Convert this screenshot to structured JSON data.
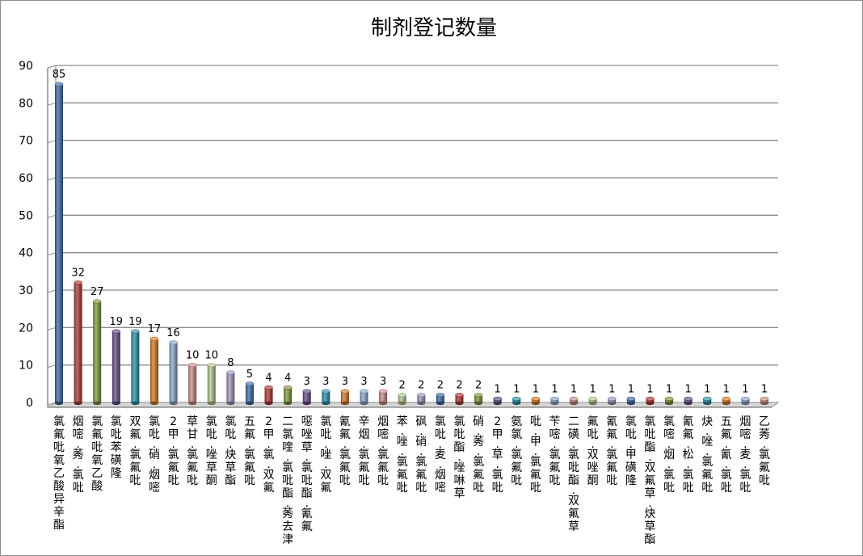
{
  "chart_data": {
    "type": "bar",
    "title": "制剂登记数量",
    "xlabel": "",
    "ylabel": "",
    "ylim": [
      0,
      90
    ],
    "yticks": [
      0,
      10,
      20,
      30,
      40,
      50,
      60,
      70,
      80,
      90
    ],
    "grid": true,
    "legend": "none",
    "style": "3d-cylinder",
    "categories": [
      "氯氟吡氧乙酸异辛酯",
      "烟嘧·莠·氯吡",
      "氯氟吡氧乙酸",
      "氯吡苯磺隆",
      "双氟·氯氟吡",
      "氯吡·硝·烟嘧",
      "2甲·氯氟吡",
      "草甘·氯氟吡",
      "氯吡·唑草酮",
      "氯吡·炔草酯",
      "五氟·氯氟吡",
      "2甲·氯·双氟",
      "二氯喹·氯吡酯·莠去津",
      "噁唑草·氯吡酯·氰氟",
      "氯吡·唑·双氟",
      "氰氟·氯氟吡",
      "辛烟·氯氟吡",
      "烟嘧·氯氟吡",
      "苯·唑·氯氟吡",
      "砜·硝·氯氟吡",
      "氯吡·麦·烟嘧",
      "氯吡酯·唑啉草",
      "硝·莠·氯氟吡",
      "2甲·草·氯吡",
      "氨氯·氯氟吡",
      "吡·甲·氯氟吡",
      "苄嘧·氯氟吡",
      "二磺·氯吡酯·双氟草",
      "氟吡·双唑酮",
      "氰氟·氯氟吡",
      "氯吡·甲磺隆",
      "氯吡酯·双氟草·炔草酯",
      "氯嘧·烟·氯吡",
      "氰氟·松·氯吡",
      "炔·唑·氯氟吡",
      "五氟·氰·氯吡",
      "烟嘧·麦·氯吡",
      "乙莠·氯氟吡"
    ],
    "values": [
      85,
      32,
      27,
      19,
      19,
      17,
      16,
      10,
      10,
      8,
      5,
      4,
      4,
      3,
      3,
      3,
      3,
      3,
      2,
      2,
      2,
      2,
      2,
      1,
      1,
      1,
      1,
      1,
      1,
      1,
      1,
      1,
      1,
      1,
      1,
      1,
      1,
      1
    ],
    "colors": [
      "#3e6ea6",
      "#b03a36",
      "#7f9c3d",
      "#674f8a",
      "#2e92ad",
      "#d67d2b",
      "#8ea8cf",
      "#d18e8c",
      "#b4c98f",
      "#a597c0"
    ]
  }
}
